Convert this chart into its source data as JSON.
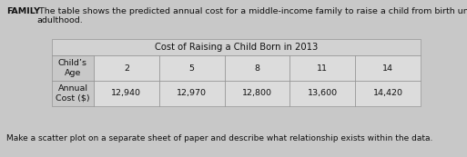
{
  "title_bold": "FAMILY",
  "title_text": " The table shows the predicted annual cost for a middle-income family to raise a child from birth until\nadulthood.",
  "table_header": "Cost of Raising a Child Born in 2013",
  "row1_label": "Child’s\nAge",
  "row2_label": "Annual\nCost ($)",
  "ages": [
    "2",
    "5",
    "8",
    "11",
    "14"
  ],
  "costs_str": [
    "12,940",
    "12,970",
    "12,800",
    "13,600",
    "14,420"
  ],
  "footer": "Make a scatter plot on a separate sheet of paper and describe what relationship exists within the data.",
  "bg_color": "#c8c8c8",
  "cell_light": "#dcdcdc",
  "cell_label": "#c8c8c8",
  "header_color": "#d2d2d2",
  "border_color": "#888888",
  "text_color": "#111111",
  "font_size_body": 6.8,
  "font_size_header": 7.2,
  "font_size_footer": 6.5
}
